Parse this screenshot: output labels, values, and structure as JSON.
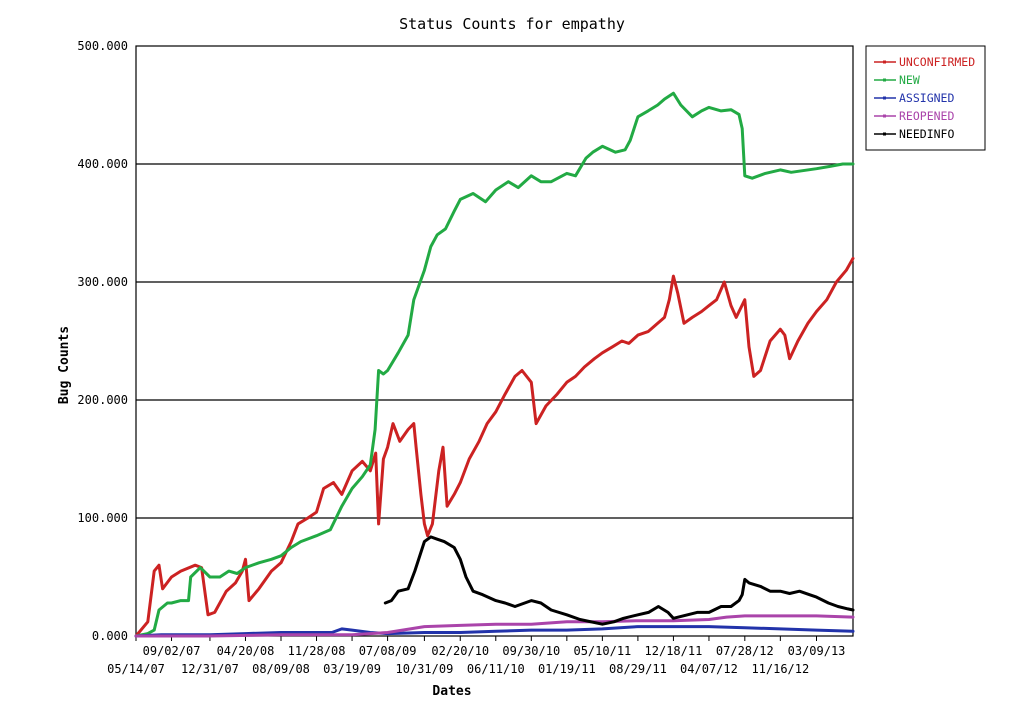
{
  "chart_data": {
    "type": "line",
    "title": "Status Counts for empathy",
    "xlabel": "Dates",
    "ylabel": "Bug Counts",
    "ylim": [
      0,
      500
    ],
    "y_ticks": [
      "0.000",
      "100.000",
      "200.000",
      "300.000",
      "400.000",
      "500.000"
    ],
    "x_ticks": [
      "05/14/07",
      "09/02/07",
      "12/31/07",
      "04/20/08",
      "08/09/08",
      "11/28/08",
      "03/19/09",
      "07/08/09",
      "10/31/09",
      "02/20/10",
      "06/11/10",
      "09/30/10",
      "01/19/11",
      "05/10/11",
      "08/29/11",
      "12/18/11",
      "04/07/12",
      "07/28/12",
      "11/16/12",
      "03/09/13"
    ],
    "grid": "horizontal",
    "legend_position": "top-right outside",
    "series": [
      {
        "name": "UNCONFIRMED",
        "color": "#cc2222",
        "points": [
          [
            "05/14/07",
            0
          ],
          [
            "06/20/07",
            12
          ],
          [
            "07/10/07",
            55
          ],
          [
            "07/25/07",
            60
          ],
          [
            "08/05/07",
            40
          ],
          [
            "09/02/07",
            50
          ],
          [
            "10/01/07",
            55
          ],
          [
            "11/15/07",
            60
          ],
          [
            "12/05/07",
            58
          ],
          [
            "12/25/07",
            18
          ],
          [
            "01/15/08",
            20
          ],
          [
            "02/20/08",
            38
          ],
          [
            "03/20/08",
            45
          ],
          [
            "04/10/08",
            55
          ],
          [
            "04/20/08",
            65
          ],
          [
            "05/01/08",
            30
          ],
          [
            "06/01/08",
            40
          ],
          [
            "07/10/08",
            55
          ],
          [
            "08/09/08",
            62
          ],
          [
            "09/10/08",
            80
          ],
          [
            "10/01/08",
            95
          ],
          [
            "11/01/08",
            100
          ],
          [
            "11/28/08",
            105
          ],
          [
            "12/20/08",
            125
          ],
          [
            "01/20/09",
            130
          ],
          [
            "02/15/09",
            120
          ],
          [
            "03/19/09",
            140
          ],
          [
            "04/20/09",
            148
          ],
          [
            "05/15/09",
            140
          ],
          [
            "06/01/09",
            155
          ],
          [
            "06/10/09",
            95
          ],
          [
            "06/25/09",
            150
          ],
          [
            "07/08/09",
            160
          ],
          [
            "07/25/09",
            180
          ],
          [
            "08/15/09",
            165
          ],
          [
            "09/10/09",
            175
          ],
          [
            "09/28/09",
            180
          ],
          [
            "10/05/09",
            160
          ],
          [
            "10/20/09",
            120
          ],
          [
            "10/31/09",
            95
          ],
          [
            "11/10/09",
            85
          ],
          [
            "11/25/09",
            95
          ],
          [
            "12/15/09",
            140
          ],
          [
            "12/28/09",
            160
          ],
          [
            "01/10/10",
            110
          ],
          [
            "02/01/10",
            120
          ],
          [
            "02/20/10",
            130
          ],
          [
            "03/20/10",
            150
          ],
          [
            "04/20/10",
            165
          ],
          [
            "05/15/10",
            180
          ],
          [
            "06/11/10",
            190
          ],
          [
            "07/10/10",
            205
          ],
          [
            "08/10/10",
            220
          ],
          [
            "09/01/10",
            225
          ],
          [
            "09/30/10",
            215
          ],
          [
            "10/15/10",
            180
          ],
          [
            "11/15/10",
            195
          ],
          [
            "12/20/10",
            205
          ],
          [
            "01/19/11",
            215
          ],
          [
            "02/15/11",
            220
          ],
          [
            "03/15/11",
            228
          ],
          [
            "04/15/11",
            235
          ],
          [
            "05/10/11",
            240
          ],
          [
            "06/10/11",
            245
          ],
          [
            "07/10/11",
            250
          ],
          [
            "08/01/11",
            248
          ],
          [
            "08/29/11",
            255
          ],
          [
            "09/30/11",
            258
          ],
          [
            "10/30/11",
            265
          ],
          [
            "11/20/11",
            270
          ],
          [
            "12/05/11",
            285
          ],
          [
            "12/18/11",
            305
          ],
          [
            "01/01/12",
            290
          ],
          [
            "01/20/12",
            265
          ],
          [
            "02/15/12",
            270
          ],
          [
            "03/15/12",
            275
          ],
          [
            "04/07/12",
            280
          ],
          [
            "05/01/12",
            285
          ],
          [
            "05/25/12",
            300
          ],
          [
            "06/15/12",
            280
          ],
          [
            "07/01/12",
            270
          ],
          [
            "07/28/12",
            285
          ],
          [
            "08/10/12",
            245
          ],
          [
            "08/25/12",
            220
          ],
          [
            "09/15/12",
            225
          ],
          [
            "10/15/12",
            250
          ],
          [
            "11/16/12",
            260
          ],
          [
            "11/30/12",
            255
          ],
          [
            "12/15/12",
            235
          ],
          [
            "01/10/13",
            250
          ],
          [
            "02/10/13",
            265
          ],
          [
            "03/09/13",
            275
          ],
          [
            "04/10/13",
            285
          ],
          [
            "05/10/13",
            300
          ],
          [
            "06/10/13",
            310
          ],
          [
            "07/01/13",
            320
          ]
        ]
      },
      {
        "name": "NEW",
        "color": "#22aa44",
        "points": [
          [
            "05/14/07",
            0
          ],
          [
            "06/20/07",
            2
          ],
          [
            "07/10/07",
            5
          ],
          [
            "07/25/07",
            22
          ],
          [
            "08/20/07",
            28
          ],
          [
            "09/02/07",
            28
          ],
          [
            "10/01/07",
            30
          ],
          [
            "10/25/07",
            30
          ],
          [
            "11/01/07",
            50
          ],
          [
            "12/01/07",
            58
          ],
          [
            "12/31/07",
            50
          ],
          [
            "01/31/08",
            50
          ],
          [
            "02/28/08",
            55
          ],
          [
            "03/25/08",
            53
          ],
          [
            "04/20/08",
            58
          ],
          [
            "06/01/08",
            62
          ],
          [
            "07/10/08",
            65
          ],
          [
            "08/09/08",
            68
          ],
          [
            "09/10/08",
            75
          ],
          [
            "10/10/08",
            80
          ],
          [
            "11/28/08",
            85
          ],
          [
            "01/10/09",
            90
          ],
          [
            "02/15/09",
            110
          ],
          [
            "03/19/09",
            125
          ],
          [
            "04/20/09",
            135
          ],
          [
            "05/15/09",
            145
          ],
          [
            "05/30/09",
            175
          ],
          [
            "06/10/09",
            225
          ],
          [
            "06/25/09",
            222
          ],
          [
            "07/08/09",
            225
          ],
          [
            "08/10/09",
            240
          ],
          [
            "09/10/09",
            255
          ],
          [
            "09/28/09",
            285
          ],
          [
            "10/31/09",
            310
          ],
          [
            "11/20/09",
            330
          ],
          [
            "12/10/09",
            340
          ],
          [
            "01/05/10",
            345
          ],
          [
            "02/01/10",
            360
          ],
          [
            "02/20/10",
            370
          ],
          [
            "04/01/10",
            375
          ],
          [
            "05/10/10",
            368
          ],
          [
            "06/11/10",
            378
          ],
          [
            "07/20/10",
            385
          ],
          [
            "08/20/10",
            380
          ],
          [
            "09/30/10",
            390
          ],
          [
            "10/30/10",
            385
          ],
          [
            "12/01/10",
            385
          ],
          [
            "01/19/11",
            392
          ],
          [
            "02/15/11",
            390
          ],
          [
            "03/20/11",
            405
          ],
          [
            "04/10/11",
            410
          ],
          [
            "05/10/11",
            415
          ],
          [
            "06/20/11",
            410
          ],
          [
            "07/20/11",
            412
          ],
          [
            "08/05/11",
            420
          ],
          [
            "08/29/11",
            440
          ],
          [
            "09/30/11",
            445
          ],
          [
            "10/30/11",
            450
          ],
          [
            "11/20/11",
            455
          ],
          [
            "12/18/11",
            460
          ],
          [
            "01/10/12",
            450
          ],
          [
            "02/15/12",
            440
          ],
          [
            "03/15/12",
            445
          ],
          [
            "04/07/12",
            448
          ],
          [
            "05/15/12",
            445
          ],
          [
            "06/15/12",
            446
          ],
          [
            "07/10/12",
            442
          ],
          [
            "07/20/12",
            430
          ],
          [
            "07/28/12",
            390
          ],
          [
            "08/20/12",
            388
          ],
          [
            "09/30/12",
            392
          ],
          [
            "11/16/12",
            395
          ],
          [
            "12/20/12",
            393
          ],
          [
            "03/09/13",
            396
          ],
          [
            "04/20/13",
            398
          ],
          [
            "05/30/13",
            400
          ],
          [
            "07/01/13",
            400
          ]
        ]
      },
      {
        "name": "ASSIGNED",
        "color": "#2233aa",
        "points": [
          [
            "05/14/07",
            0
          ],
          [
            "08/01/07",
            1
          ],
          [
            "12/31/07",
            1
          ],
          [
            "04/20/08",
            2
          ],
          [
            "08/09/08",
            3
          ],
          [
            "11/28/08",
            3
          ],
          [
            "01/15/09",
            3
          ],
          [
            "02/15/09",
            6
          ],
          [
            "03/19/09",
            5
          ],
          [
            "05/15/09",
            3
          ],
          [
            "07/08/09",
            2
          ],
          [
            "10/31/09",
            3
          ],
          [
            "02/20/10",
            3
          ],
          [
            "06/11/10",
            4
          ],
          [
            "09/30/10",
            5
          ],
          [
            "01/19/11",
            5
          ],
          [
            "05/10/11",
            6
          ],
          [
            "08/29/11",
            8
          ],
          [
            "12/18/11",
            8
          ],
          [
            "04/07/12",
            8
          ],
          [
            "07/28/12",
            7
          ],
          [
            "11/16/12",
            6
          ],
          [
            "03/09/13",
            5
          ],
          [
            "07/01/13",
            4
          ]
        ]
      },
      {
        "name": "REOPENED",
        "color": "#aa44aa",
        "points": [
          [
            "05/14/07",
            0
          ],
          [
            "12/31/07",
            0
          ],
          [
            "08/09/08",
            1
          ],
          [
            "03/19/09",
            1
          ],
          [
            "07/08/09",
            3
          ],
          [
            "10/31/09",
            8
          ],
          [
            "02/20/10",
            9
          ],
          [
            "06/11/10",
            10
          ],
          [
            "09/30/10",
            10
          ],
          [
            "01/19/11",
            12
          ],
          [
            "05/10/11",
            12
          ],
          [
            "08/29/11",
            13
          ],
          [
            "12/18/11",
            13
          ],
          [
            "04/07/12",
            14
          ],
          [
            "06/01/12",
            16
          ],
          [
            "07/28/12",
            17
          ],
          [
            "11/16/12",
            17
          ],
          [
            "03/09/13",
            17
          ],
          [
            "07/01/13",
            16
          ]
        ]
      },
      {
        "name": "NEEDINFO",
        "color": "#000000",
        "points": [
          [
            "07/01/09",
            28
          ],
          [
            "07/20/09",
            30
          ],
          [
            "08/10/09",
            38
          ],
          [
            "09/10/09",
            40
          ],
          [
            "10/01/09",
            55
          ],
          [
            "10/31/09",
            80
          ],
          [
            "11/20/09",
            84
          ],
          [
            "12/10/09",
            82
          ],
          [
            "01/01/10",
            80
          ],
          [
            "02/01/10",
            75
          ],
          [
            "02/20/10",
            65
          ],
          [
            "03/10/10",
            50
          ],
          [
            "04/01/10",
            38
          ],
          [
            "05/01/10",
            35
          ],
          [
            "06/11/10",
            30
          ],
          [
            "07/10/10",
            28
          ],
          [
            "08/10/10",
            25
          ],
          [
            "09/30/10",
            30
          ],
          [
            "10/30/10",
            28
          ],
          [
            "12/01/10",
            22
          ],
          [
            "01/19/11",
            18
          ],
          [
            "03/01/11",
            14
          ],
          [
            "05/10/11",
            10
          ],
          [
            "06/15/11",
            12
          ],
          [
            "07/15/11",
            15
          ],
          [
            "08/29/11",
            18
          ],
          [
            "10/01/11",
            20
          ],
          [
            "11/01/11",
            25
          ],
          [
            "12/01/11",
            20
          ],
          [
            "12/18/11",
            15
          ],
          [
            "01/31/12",
            18
          ],
          [
            "03/01/12",
            20
          ],
          [
            "04/07/12",
            20
          ],
          [
            "05/15/12",
            25
          ],
          [
            "06/15/12",
            25
          ],
          [
            "07/10/12",
            30
          ],
          [
            "07/20/12",
            35
          ],
          [
            "07/28/12",
            48
          ],
          [
            "08/10/12",
            45
          ],
          [
            "09/15/12",
            42
          ],
          [
            "10/15/12",
            38
          ],
          [
            "11/16/12",
            38
          ],
          [
            "12/15/12",
            36
          ],
          [
            "01/15/13",
            38
          ],
          [
            "02/15/13",
            35
          ],
          [
            "03/09/13",
            33
          ],
          [
            "04/15/13",
            28
          ],
          [
            "05/15/13",
            25
          ],
          [
            "06/15/13",
            23
          ],
          [
            "07/01/13",
            22
          ]
        ]
      }
    ]
  }
}
